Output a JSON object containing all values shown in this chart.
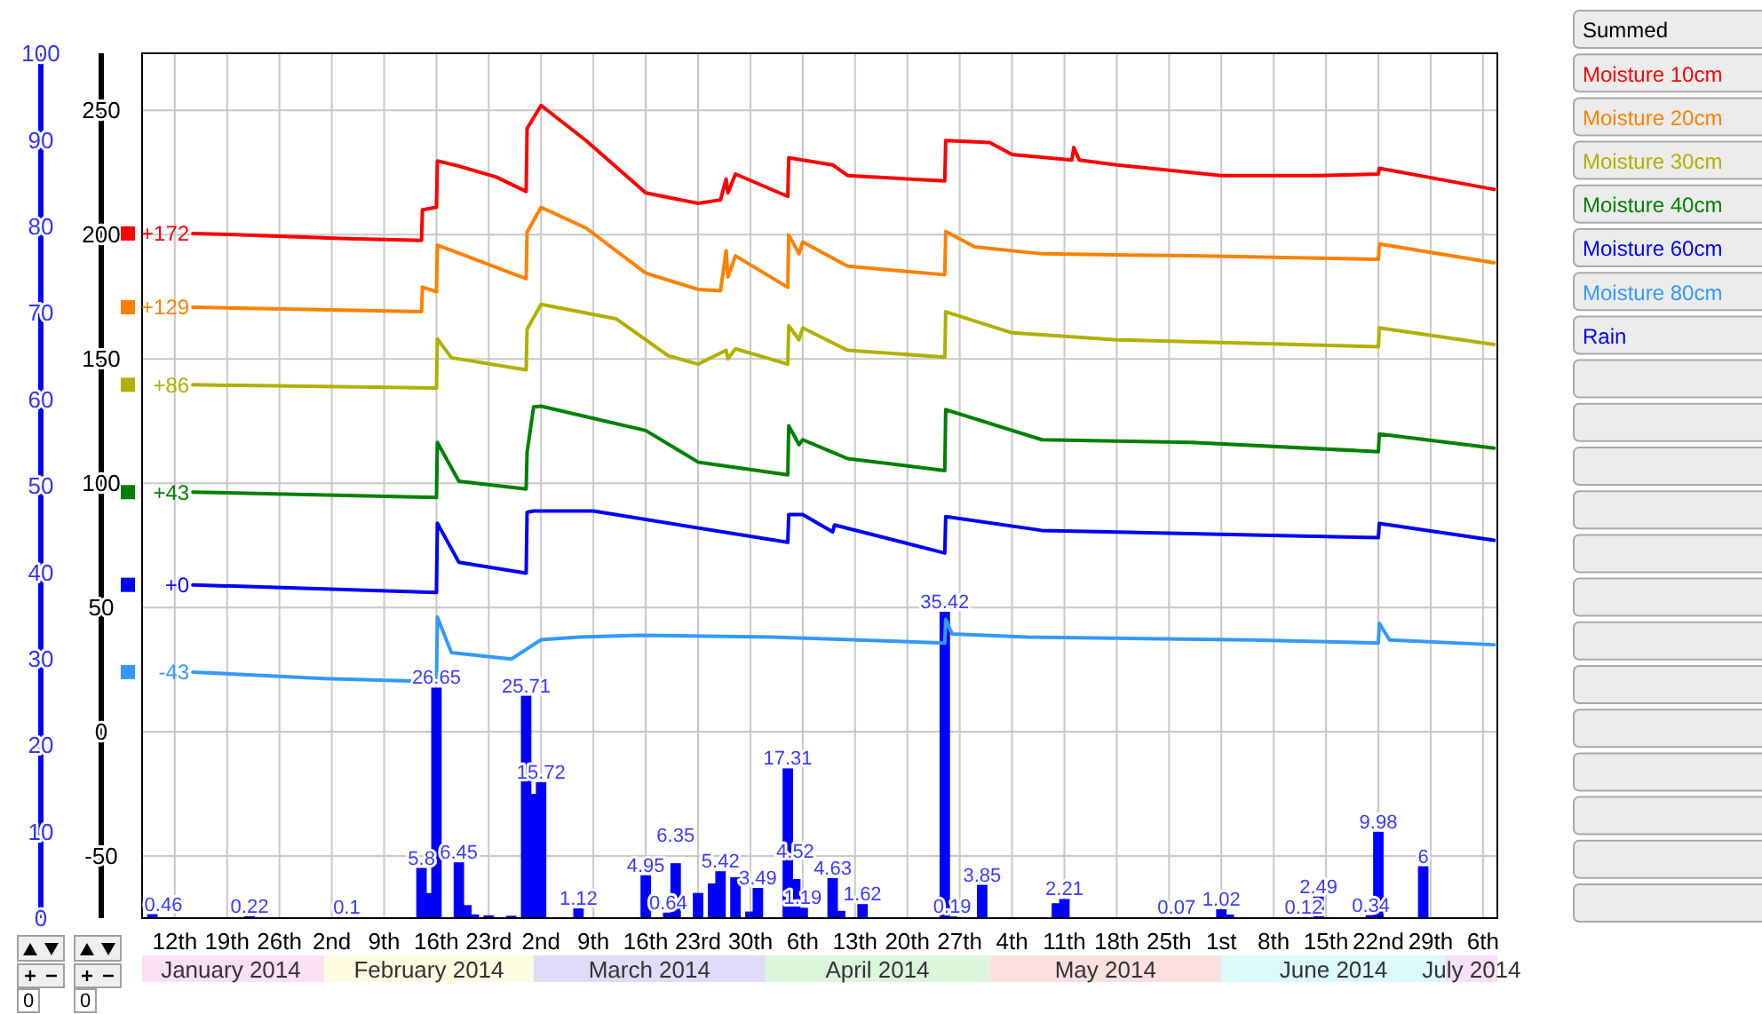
{
  "chart_data": {
    "type": "line",
    "legend": "right",
    "legend_title": "Summed",
    "grid": true,
    "xlim": [
      "2014-01-07T15:00",
      "2014-07-07T22:00"
    ],
    "xticks": [
      {
        "value": "2014-01-12",
        "label": "12th"
      },
      {
        "value": "2014-01-19",
        "label": "19th"
      },
      {
        "value": "2014-01-26",
        "label": "26th"
      },
      {
        "value": "2014-02-02",
        "label": "2nd"
      },
      {
        "value": "2014-02-09",
        "label": "9th"
      },
      {
        "value": "2014-02-16",
        "label": "16th"
      },
      {
        "value": "2014-02-23",
        "label": "23rd"
      },
      {
        "value": "2014-03-02",
        "label": "2nd"
      },
      {
        "value": "2014-03-09",
        "label": "9th"
      },
      {
        "value": "2014-03-16",
        "label": "16th"
      },
      {
        "value": "2014-03-23",
        "label": "23rd"
      },
      {
        "value": "2014-03-30",
        "label": "30th"
      },
      {
        "value": "2014-04-06",
        "label": "6th"
      },
      {
        "value": "2014-04-13",
        "label": "13th"
      },
      {
        "value": "2014-04-20",
        "label": "20th"
      },
      {
        "value": "2014-04-27",
        "label": "27th"
      },
      {
        "value": "2014-05-04",
        "label": "4th"
      },
      {
        "value": "2014-05-11",
        "label": "11th"
      },
      {
        "value": "2014-05-18",
        "label": "18th"
      },
      {
        "value": "2014-05-25",
        "label": "25th"
      },
      {
        "value": "2014-06-01",
        "label": "1st"
      },
      {
        "value": "2014-06-08",
        "label": "8th"
      },
      {
        "value": "2014-06-15",
        "label": "15th"
      },
      {
        "value": "2014-06-22",
        "label": "22nd"
      },
      {
        "value": "2014-06-29",
        "label": "29th"
      },
      {
        "value": "2014-07-06",
        "label": "6th"
      }
    ],
    "x2lim": [
      "2014-01-07T15:00",
      "2014-07-07T22:00"
    ],
    "x2ticks": [
      {
        "value": "2014-01-19T12:00",
        "label": "January 2014"
      },
      {
        "value": "2014-02-15",
        "label": "February 2014"
      },
      {
        "value": "2014-03-16T12:00",
        "label": "March 2014"
      },
      {
        "value": "2014-04-16",
        "label": "April 2014"
      },
      {
        "value": "2014-05-16T12:00",
        "label": "May 2014"
      },
      {
        "value": "2014-06-16",
        "label": "June 2014"
      },
      {
        "value": "2014-07-04T11:00",
        "label": "July 2014"
      }
    ],
    "ylim": [
      -75,
      273
    ],
    "yticks": [
      -50,
      0,
      50,
      100,
      150,
      200,
      250
    ],
    "y2lim": [
      0,
      100
    ],
    "y2ticks": [
      0,
      10,
      20,
      30,
      40,
      50,
      60,
      70,
      80,
      90,
      100
    ],
    "series": [
      {
        "name": "Moisture 10cm",
        "color": "#ff0000",
        "x": [
          "2014-01-14T10:00",
          "2014-01-20",
          "2014-02-04",
          "2014-02-14",
          "2014-02-14T03:00",
          "2014-02-16",
          "2014-02-16T03:00",
          "2014-02-19",
          "2014-02-24",
          "2014-02-28",
          "2014-02-28T03:00",
          "2014-03-02",
          "2014-03-08",
          "2014-03-16",
          "2014-03-23",
          "2014-03-26",
          "2014-03-26T18:00",
          "2014-03-27",
          "2014-03-28",
          "2014-04-04",
          "2014-04-04T03:00",
          "2014-04-06",
          "2014-04-10",
          "2014-04-12",
          "2014-04-25",
          "2014-04-25T03:00",
          "2014-05-01",
          "2014-05-04",
          "2014-05-12",
          "2014-05-12T06:00",
          "2014-05-13",
          "2014-05-18",
          "2014-06-01",
          "2014-06-14",
          "2014-06-22",
          "2014-06-22T03:00",
          "2014-06-30",
          "2014-07-07T12:00"
        ],
        "values": [
          200.5,
          200,
          198.4,
          197.7,
          210,
          211,
          229.7,
          227.6,
          223.2,
          217.4,
          242.7,
          252,
          237.9,
          216.8,
          212.6,
          214,
          222.4,
          216.8,
          224.4,
          215.4,
          230.9,
          230,
          228.1,
          223.8,
          221.6,
          237.9,
          237.1,
          232.3,
          230,
          235.1,
          230,
          228.1,
          223.8,
          223.8,
          224.4,
          226.7,
          222.4,
          218.2
        ]
      },
      {
        "name": "Moisture 20cm",
        "color": "#ff8000",
        "x": [
          "2014-01-14T10:00",
          "2014-02-14",
          "2014-02-14T03:00",
          "2014-02-16",
          "2014-02-16T03:00",
          "2014-02-28",
          "2014-02-28T03:00",
          "2014-03-02",
          "2014-03-08",
          "2014-03-16",
          "2014-03-23",
          "2014-03-26",
          "2014-03-26T18:00",
          "2014-03-27",
          "2014-03-28",
          "2014-04-04",
          "2014-04-04T03:00",
          "2014-04-05T12:00",
          "2014-04-06",
          "2014-04-12",
          "2014-04-25",
          "2014-04-25T03:00",
          "2014-04-29",
          "2014-05-08",
          "2014-05-28",
          "2014-06-22",
          "2014-06-22T03:00",
          "2014-07-07T12:00"
        ],
        "values": [
          170.8,
          169,
          178.9,
          177,
          195.8,
          182.3,
          201,
          211,
          202.7,
          184.5,
          178,
          177.4,
          193.5,
          183,
          191.5,
          178.8,
          199.9,
          192.3,
          197.1,
          187.3,
          183.9,
          201.3,
          195.1,
          192.3,
          191.5,
          190.1,
          196.3,
          188.7
        ]
      },
      {
        "name": "Moisture 30cm",
        "color": "#b0b000",
        "x": [
          "2014-01-14T10:00",
          "2014-02-16",
          "2014-02-16T03:00",
          "2014-02-18",
          "2014-02-28",
          "2014-02-28T03:00",
          "2014-03-02",
          "2014-03-12",
          "2014-03-16",
          "2014-03-19",
          "2014-03-23",
          "2014-03-26T18:00",
          "2014-03-27",
          "2014-03-28",
          "2014-04-04",
          "2014-04-04T03:00",
          "2014-04-05T12:00",
          "2014-04-06",
          "2014-04-12",
          "2014-04-25",
          "2014-04-25T03:00",
          "2014-05-04",
          "2014-05-18",
          "2014-06-22",
          "2014-06-22T03:00",
          "2014-07-07T12:00"
        ],
        "values": [
          139.6,
          138.3,
          158.1,
          150.5,
          145.6,
          162,
          172,
          166.2,
          157.7,
          151.3,
          147.9,
          153.5,
          150.1,
          154.1,
          147.9,
          163.4,
          157.7,
          162.5,
          153.5,
          150.7,
          169,
          160.5,
          157.7,
          154.9,
          162.5,
          155.8
        ]
      },
      {
        "name": "Moisture 40cm",
        "color": "#008000",
        "x": [
          "2014-01-14T10:00",
          "2014-02-16",
          "2014-02-16T03:00",
          "2014-02-19",
          "2014-02-28",
          "2014-02-28T03:00",
          "2014-03-01",
          "2014-03-02",
          "2014-03-08",
          "2014-03-16",
          "2014-03-23",
          "2014-04-04",
          "2014-04-04T03:00",
          "2014-04-05T12:00",
          "2014-04-06",
          "2014-04-12",
          "2014-04-25",
          "2014-04-25T03:00",
          "2014-05-08",
          "2014-05-28",
          "2014-06-22",
          "2014-06-22T03:00",
          "2014-07-07T12:00"
        ],
        "values": [
          96.4,
          94.3,
          116.4,
          100.8,
          97.7,
          112.5,
          130.7,
          131,
          126.8,
          121.2,
          108.5,
          103.4,
          123.1,
          115.5,
          117.5,
          109.9,
          105.1,
          129.6,
          117.5,
          116.4,
          112.7,
          119.8,
          114.1
        ]
      },
      {
        "name": "Moisture 60cm",
        "color": "#0000ff",
        "x": [
          "2014-01-14T10:00",
          "2014-02-16",
          "2014-02-16T03:00",
          "2014-02-19",
          "2014-02-28",
          "2014-02-28T03:00",
          "2014-03-01",
          "2014-03-09",
          "2014-04-04",
          "2014-04-04T03:00",
          "2014-04-06",
          "2014-04-10",
          "2014-04-10T06:00",
          "2014-04-25",
          "2014-04-25T03:00",
          "2014-05-08",
          "2014-06-22",
          "2014-06-22T03:00",
          "2014-07-07T12:00"
        ],
        "values": [
          59.1,
          56,
          83.9,
          68.2,
          63.8,
          88.3,
          88.8,
          88.8,
          76.2,
          87.4,
          87.4,
          80.4,
          83.2,
          71.9,
          86.6,
          81,
          78.1,
          83.8,
          77
        ]
      },
      {
        "name": "Moisture 80cm",
        "color": "#3399ff",
        "x": [
          "2014-01-14T10:00",
          "2014-02-01",
          "2014-02-16",
          "2014-02-16T03:00",
          "2014-02-18",
          "2014-02-26",
          "2014-03-02",
          "2014-03-07",
          "2014-03-15",
          "2014-04-02",
          "2014-04-25",
          "2014-04-25T03:00",
          "2014-04-26",
          "2014-05-06",
          "2014-06-05",
          "2014-06-22",
          "2014-06-22T03:00",
          "2014-06-23T12:00",
          "2014-07-07T12:00"
        ],
        "values": [
          24,
          21.4,
          20.1,
          46.1,
          31.8,
          29.2,
          37,
          38.1,
          38.8,
          38.1,
          35.7,
          45.2,
          39.3,
          38.1,
          36.9,
          35.7,
          43.6,
          36.9,
          35
        ]
      },
      {
        "name": "Rain",
        "type": "bar",
        "axis": "y2",
        "color": "#0000ff",
        "x": [
          "2014-01-09",
          "2014-01-22",
          "2014-02-04",
          "2014-02-14",
          "2014-02-15",
          "2014-02-16",
          "2014-02-19",
          "2014-02-20",
          "2014-02-21",
          "2014-02-23",
          "2014-02-26",
          "2014-02-28",
          "2014-03-01",
          "2014-03-02",
          "2014-03-07",
          "2014-03-16",
          "2014-03-19",
          "2014-03-20",
          "2014-03-23",
          "2014-03-25",
          "2014-03-26",
          "2014-03-28",
          "2014-03-30",
          "2014-03-31",
          "2014-04-04",
          "2014-04-05",
          "2014-04-06",
          "2014-04-10",
          "2014-04-11",
          "2014-04-12",
          "2014-04-14",
          "2014-04-25",
          "2014-04-26",
          "2014-04-30",
          "2014-05-10",
          "2014-05-11",
          "2014-05-26",
          "2014-06-01",
          "2014-06-02",
          "2014-06-08",
          "2014-06-12",
          "2014-06-14",
          "2014-06-21",
          "2014-06-22",
          "2014-06-28"
        ],
        "values": [
          0.46,
          0.22,
          0.1,
          5.8,
          2.89,
          26.65,
          6.45,
          1.5,
          0.43,
          0.32,
          0.27,
          25.71,
          14.36,
          15.72,
          1.12,
          4.95,
          0.64,
          6.35,
          2.91,
          4.01,
          5.42,
          4.73,
          0.76,
          3.49,
          17.31,
          4.52,
          1.19,
          4.63,
          0.84,
          0.09,
          1.62,
          35.42,
          0.19,
          3.85,
          1.72,
          2.21,
          0.07,
          1.02,
          0.41,
          0.08,
          0.12,
          2.49,
          0.34,
          9.98,
          6
        ],
        "value_labels": [
          "0.46",
          "0.22",
          "0.1",
          "5.8",
          null,
          "26.65",
          "6.45",
          null,
          null,
          null,
          null,
          "25.71",
          null,
          "15.72",
          "1.12",
          "4.95",
          "0.64",
          "6.35",
          null,
          null,
          "5.42",
          null,
          null,
          "3.49",
          "17.31",
          "4.52",
          "1.19",
          "4.63",
          null,
          null,
          "1.62",
          "35.42",
          "0.19",
          "3.85",
          null,
          "2.21",
          "0.07",
          "1.02",
          null,
          null,
          "0.12",
          "2.49",
          "0.34",
          "9.98",
          "6"
        ]
      }
    ],
    "annotations": [
      {
        "text": "+172",
        "x": "2014-01-14T10:00",
        "y": 200.5
      },
      {
        "text": "+129",
        "x": "2014-01-14T10:00",
        "y": 170.8
      },
      {
        "text": "+86",
        "x": "2014-01-14T10:00",
        "y": 139.6
      },
      {
        "text": "+43",
        "x": "2014-01-14T10:00",
        "y": 96.4
      },
      {
        "text": "+0",
        "x": "2014-01-14T10:00",
        "y": 59.1
      },
      {
        "text": "-43",
        "x": "2014-01-14T10:00",
        "y": 24
      },
      "0",
      "0"
    ]
  }
}
